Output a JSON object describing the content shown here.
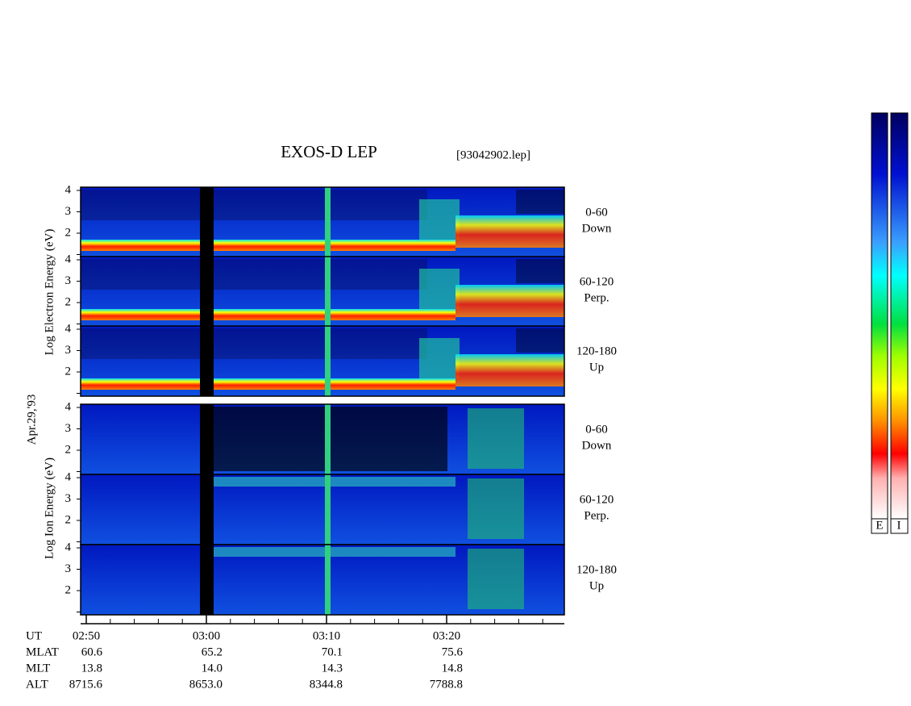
{
  "title": "EXOS-D LEP",
  "file": "[93042902.lep]",
  "date": "Apr.29,'93",
  "electron": {
    "ylabel": "Log Electron Energy (eV)",
    "panels": [
      {
        "range": "0-60",
        "dir": "Down",
        "yticks": [
          2,
          3,
          4
        ]
      },
      {
        "range": "60-120",
        "dir": "Perp.",
        "yticks": [
          2,
          3,
          4
        ]
      },
      {
        "range": "120-180",
        "dir": "Up",
        "yticks": [
          2,
          3,
          4
        ]
      }
    ]
  },
  "ion": {
    "ylabel": "Log Ion Energy (eV)",
    "panels": [
      {
        "range": "0-60",
        "dir": "Down",
        "yticks": [
          2,
          3,
          4
        ]
      },
      {
        "range": "60-120",
        "dir": "Perp.",
        "yticks": [
          2,
          3,
          4
        ]
      },
      {
        "range": "120-180",
        "dir": "Up",
        "yticks": [
          2,
          3,
          4
        ]
      }
    ]
  },
  "xaxis": {
    "rows": [
      {
        "name": "UT",
        "values": [
          "02:50",
          "03:00",
          "03:10",
          "03:20"
        ]
      },
      {
        "name": "MLAT",
        "values": [
          "60.6",
          "65.2",
          "70.1",
          "75.6"
        ]
      },
      {
        "name": "MLT",
        "values": [
          "13.8",
          "14.0",
          "14.3",
          "14.8"
        ]
      },
      {
        "name": "ALT",
        "values": [
          "8715.6",
          "8653.0",
          "8344.8",
          "7788.8"
        ]
      }
    ]
  },
  "colorbar": {
    "labels": [
      "E",
      "I"
    ]
  }
}
